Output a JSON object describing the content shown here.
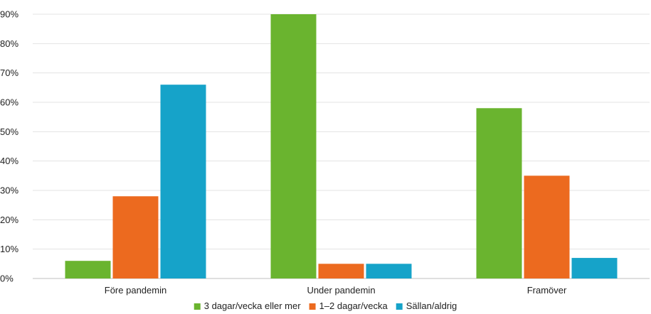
{
  "chart_data": {
    "type": "bar",
    "categories": [
      "Före pandemin",
      "Under pandemin",
      "Framöver"
    ],
    "series": [
      {
        "name": "3 dagar/vecka eller mer",
        "color": "#6ab42f",
        "values": [
          6,
          90,
          58
        ]
      },
      {
        "name": "1–2 dagar/vecka",
        "color": "#ec6a1f",
        "values": [
          28,
          5,
          35
        ]
      },
      {
        "name": "Sällan/aldrig",
        "color": "#16a3c9",
        "values": [
          66,
          5,
          7
        ]
      }
    ],
    "ylim": [
      0,
      90
    ],
    "yticks": [
      0,
      10,
      20,
      30,
      40,
      50,
      60,
      70,
      80,
      90
    ],
    "ytick_labels": [
      "0%",
      "10%",
      "20%",
      "30%",
      "40%",
      "50%",
      "60%",
      "70%",
      "80%",
      "90%"
    ],
    "grid": true,
    "legend_position": "bottom"
  }
}
